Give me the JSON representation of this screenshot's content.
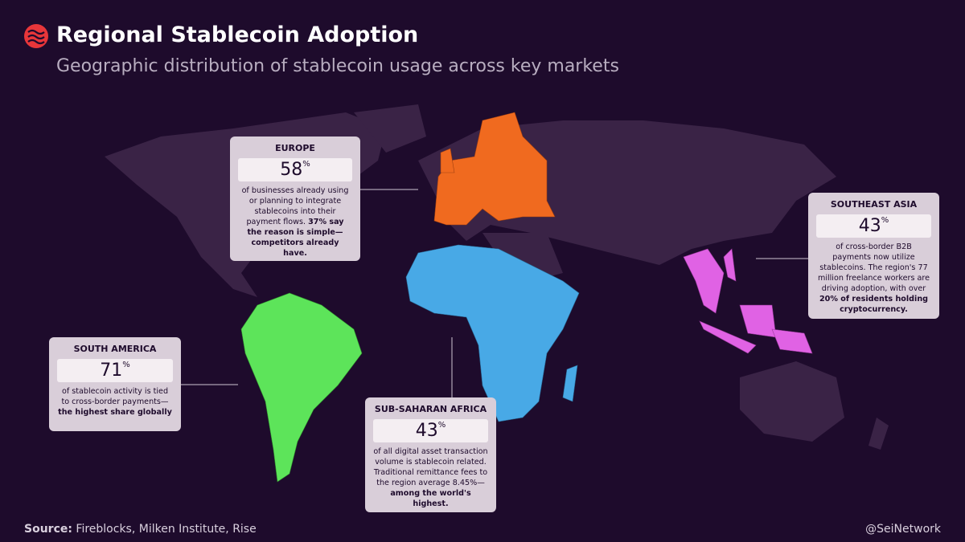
{
  "header": {
    "title": "Regional Stablecoin Adoption",
    "subtitle": "Geographic distribution of stablecoin usage across key markets"
  },
  "regions": [
    {
      "name": "EUROPE",
      "value": 58,
      "unit": "%",
      "text": "of businesses already using or planning to integrate stablecoins into their payment flows.",
      "bold": "37% say the reason is simple—competitors already have."
    },
    {
      "name": "SOUTHEAST ASIA",
      "value": 43,
      "unit": "%",
      "text": "of cross-border B2B payments now utilize stablecoins. The region's 77 million freelance workers are driving adoption, with over",
      "bold": "20% of residents holding cryptocurrency."
    },
    {
      "name": "SOUTH AMERICA",
      "value": 71,
      "unit": "%",
      "text": "of stablecoin activity is tied to cross-border payments—",
      "bold": "the highest share globally"
    },
    {
      "name": "SUB-SAHARAN AFRICA",
      "value": 43,
      "unit": "%",
      "text": "of all digital asset transaction volume is stablecoin related. Traditional remittance fees to the region average 8.45%—",
      "bold": "among the world's highest."
    }
  ],
  "footer": {
    "source_label": "Source:",
    "source": "Fireblocks, Milken Institute, Rise",
    "handle": "@SeiNetwork"
  }
}
